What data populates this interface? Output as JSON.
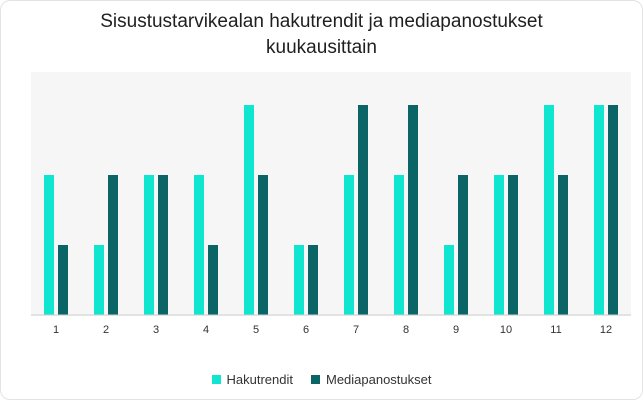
{
  "chart_data": {
    "type": "bar",
    "title": "Sisustustarvikealan hakutrendit ja mediapanostukset\nkuukausittain",
    "xlabel": "",
    "ylabel": "",
    "categories": [
      "1",
      "2",
      "3",
      "4",
      "5",
      "6",
      "7",
      "8",
      "9",
      "10",
      "11",
      "12"
    ],
    "series": [
      {
        "name": "Hakutrendit",
        "color": "#10e6cf",
        "values": [
          2,
          1,
          2,
          2,
          3,
          1,
          2,
          2,
          1,
          2,
          3,
          3
        ]
      },
      {
        "name": "Mediapanostukset",
        "color": "#0b6567",
        "values": [
          1,
          2,
          2,
          1,
          2,
          1,
          3,
          3,
          2,
          2,
          2,
          3
        ]
      }
    ],
    "ylim": [
      0,
      3
    ],
    "grid": false,
    "legend_position": "bottom"
  }
}
